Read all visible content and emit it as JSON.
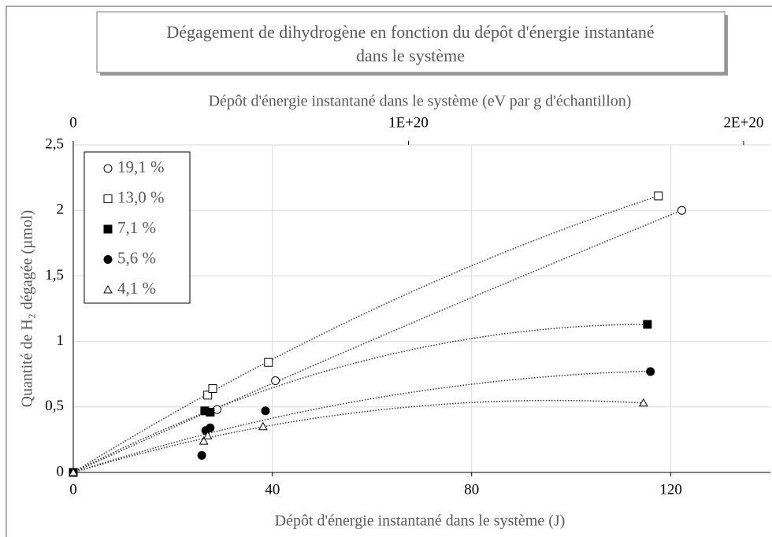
{
  "chart_data": {
    "type": "scatter",
    "title": [
      "Dégagement de dihydrogène en fonction du dépôt d'énergie instantané",
      "dans le système"
    ],
    "x_label": "Dépôt d'énergie instantané dans le système (J)",
    "x2_label": "Dépôt d'énergie instantané dans le système (eV par g d'échantillon)",
    "y_label": "Quantité de H₂ dégagée (µmol)",
    "xlim": [
      0,
      140
    ],
    "xticks": [
      0,
      40,
      80,
      120
    ],
    "x2lim": [
      0,
      2.08e+20
    ],
    "x2ticks": [
      0,
      {
        "value": 1e+20,
        "label": "1E+20"
      },
      {
        "value": 2e+20,
        "label": "2E+20"
      }
    ],
    "ylim": [
      0,
      2.5
    ],
    "yticks": [
      0,
      {
        "value": 0.5,
        "label": "0,5"
      },
      1,
      {
        "value": 1.5,
        "label": "1,5"
      },
      2,
      {
        "value": 2.5,
        "label": "2,5"
      }
    ],
    "grid": true,
    "trendline": true,
    "legend": "upper left",
    "series": [
      {
        "name": "19,1 %",
        "color": "#000000",
        "marker": "circle",
        "filled": false,
        "x": [
          0,
          28.9,
          40.6,
          122.2
        ],
        "values": [
          0,
          0.48,
          0.7,
          2.0
        ]
      },
      {
        "name": "13,0 %",
        "color": "#000000",
        "marker": "square",
        "filled": false,
        "x": [
          0,
          27.0,
          28.0,
          39.2,
          117.5
        ],
        "values": [
          0,
          0.59,
          0.64,
          0.84,
          2.11
        ]
      },
      {
        "name": "7,1 %",
        "color": "#000000",
        "marker": "square",
        "filled": true,
        "x": [
          0,
          26.4,
          27.5,
          115.3
        ],
        "values": [
          0,
          0.47,
          0.46,
          1.13
        ]
      },
      {
        "name": "5,6 %",
        "color": "#000000",
        "marker": "circle",
        "filled": true,
        "x": [
          0,
          25.8,
          26.6,
          27.5,
          38.6,
          115.9
        ],
        "values": [
          0,
          0.13,
          0.32,
          0.34,
          0.47,
          0.77
        ]
      },
      {
        "name": "4,1 %",
        "color": "#000000",
        "marker": "triangle",
        "filled": false,
        "x": [
          0,
          26.2,
          27.0,
          38.1,
          114.5
        ],
        "values": [
          0,
          0.24,
          0.28,
          0.35,
          0.53
        ]
      }
    ]
  }
}
